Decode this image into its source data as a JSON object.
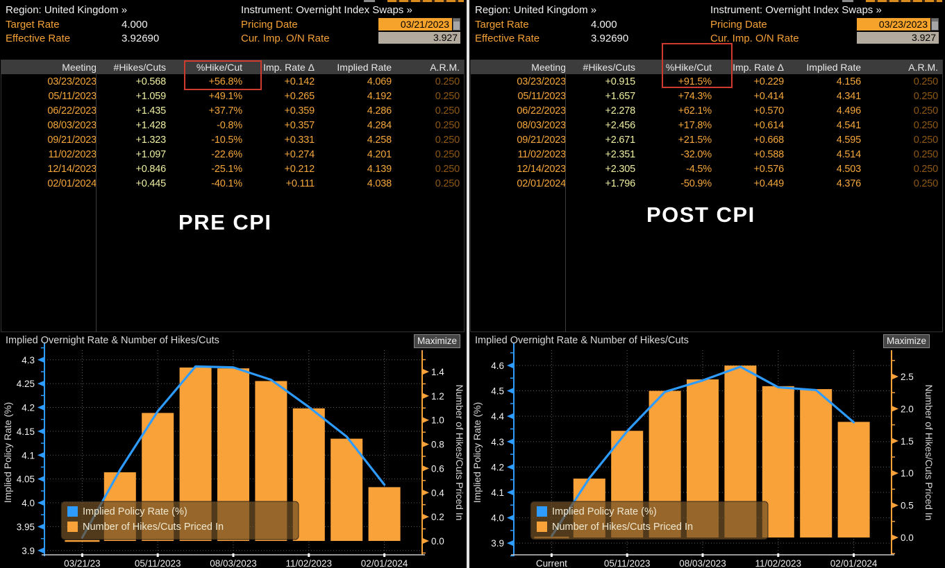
{
  "colors": {
    "amber_label": "#F4A136",
    "white_value": "#F2F2F2",
    "pale_yellow_value": "#EFEFA2",
    "dim_orange_arm": "#8E5814",
    "annotation_red": "#CE3B2E",
    "chart_blue": "#2E9BFF",
    "chart_orange": "#F9A23A",
    "date_field_bg": "#F6A32B",
    "readonly_field_bg": "#B3AB9D",
    "table_header_bg": "#3C3C3C"
  },
  "panels": [
    {
      "annotation": "PRE CPI",
      "header": {
        "region_label": "Region:",
        "region_value": "United Kingdom »",
        "instrument_label": "Instrument:",
        "instrument_value": "Overnight Index Swaps »",
        "target_rate_label": "Target Rate",
        "target_rate_value": "4.000",
        "effective_rate_label": "Effective Rate",
        "effective_rate_value": "3.92690",
        "pricing_date_label": "Pricing Date",
        "pricing_date_value": "03/21/2023",
        "cur_imp_label": "Cur. Imp. O/N Rate",
        "cur_imp_value": "3.927"
      },
      "table": {
        "columns": [
          "Meeting",
          "#Hikes/Cuts",
          "%Hike/Cut",
          "Imp. Rate Δ",
          "Implied Rate",
          "A.R.M."
        ],
        "rows": [
          [
            "03/23/2023",
            "+0.568",
            "+56.8%",
            "+0.142",
            "4.069",
            "0.250"
          ],
          [
            "05/11/2023",
            "+1.059",
            "+49.1%",
            "+0.265",
            "4.192",
            "0.250"
          ],
          [
            "06/22/2023",
            "+1.435",
            "+37.7%",
            "+0.359",
            "4.286",
            "0.250"
          ],
          [
            "08/03/2023",
            "+1.428",
            "-0.8%",
            "+0.357",
            "4.284",
            "0.250"
          ],
          [
            "09/21/2023",
            "+1.323",
            "-10.5%",
            "+0.331",
            "4.258",
            "0.250"
          ],
          [
            "11/02/2023",
            "+1.097",
            "-22.6%",
            "+0.274",
            "4.201",
            "0.250"
          ],
          [
            "12/14/2023",
            "+0.846",
            "-25.1%",
            "+0.212",
            "4.139",
            "0.250"
          ],
          [
            "02/01/2024",
            "+0.445",
            "-40.1%",
            "+0.111",
            "4.038",
            "0.250"
          ]
        ]
      },
      "chart": {
        "maximize_label": "Maximize"
      }
    },
    {
      "annotation": "POST CPI",
      "header": {
        "region_label": "Region:",
        "region_value": "United Kingdom »",
        "instrument_label": "Instrument:",
        "instrument_value": "Overnight Index Swaps »",
        "target_rate_label": "Target Rate",
        "target_rate_value": "4.000",
        "effective_rate_label": "Effective Rate",
        "effective_rate_value": "3.92690",
        "pricing_date_label": "Pricing Date",
        "pricing_date_value": "03/23/2023",
        "cur_imp_label": "Cur. Imp. O/N Rate",
        "cur_imp_value": "3.927"
      },
      "table": {
        "columns": [
          "Meeting",
          "#Hikes/Cuts",
          "%Hike/Cut",
          "Imp. Rate Δ",
          "Implied Rate",
          "A.R.M."
        ],
        "rows": [
          [
            "03/23/2023",
            "+0.915",
            "+91.5%",
            "+0.229",
            "4.156",
            "0.250"
          ],
          [
            "05/11/2023",
            "+1.657",
            "+74.3%",
            "+0.414",
            "4.341",
            "0.250"
          ],
          [
            "06/22/2023",
            "+2.278",
            "+62.1%",
            "+0.570",
            "4.496",
            "0.250"
          ],
          [
            "08/03/2023",
            "+2.456",
            "+17.8%",
            "+0.614",
            "4.541",
            "0.250"
          ],
          [
            "09/21/2023",
            "+2.671",
            "+21.5%",
            "+0.668",
            "4.595",
            "0.250"
          ],
          [
            "11/02/2023",
            "+2.351",
            "-32.0%",
            "+0.588",
            "4.514",
            "0.250"
          ],
          [
            "12/14/2023",
            "+2.305",
            "-4.5%",
            "+0.576",
            "4.503",
            "0.250"
          ],
          [
            "02/01/2024",
            "+1.796",
            "-50.9%",
            "+0.449",
            "4.376",
            "0.250"
          ]
        ]
      },
      "chart": {
        "maximize_label": "Maximize"
      }
    }
  ],
  "chart_data": [
    {
      "type": "bar+line",
      "title": "Implied Overnight Rate & Number of Hikes/Cuts",
      "x_points": [
        "03/21/23 (current)",
        "03/23/2023",
        "05/11/2023",
        "06/22/2023",
        "08/03/2023",
        "09/21/2023",
        "11/02/2023",
        "12/14/2023",
        "02/01/2024"
      ],
      "series": [
        {
          "name": "Implied Policy Rate (%)",
          "type": "line",
          "axis": "left",
          "color": "#2E9BFF",
          "values": [
            3.927,
            4.069,
            4.192,
            4.286,
            4.284,
            4.258,
            4.201,
            4.139,
            4.038
          ]
        },
        {
          "name": "Number of Hikes/Cuts Priced In",
          "type": "bar",
          "axis": "right",
          "color": "#F9A23A",
          "values": [
            0,
            0.568,
            1.059,
            1.435,
            1.428,
            1.323,
            1.097,
            0.846,
            0.445
          ]
        }
      ],
      "left_axis": {
        "title": "Implied Policy Rate (%)",
        "ticks": [
          "4.3",
          "4.25",
          "4.2",
          "4.15",
          "4.1",
          "4.05",
          "4.0",
          "3.95",
          "3.9"
        ],
        "min": 3.891,
        "max": 4.32
      },
      "right_axis": {
        "title": "Number of Hikes/Cuts Priced In",
        "ticks": [
          "1.4",
          "1.2",
          "1.0",
          "0.8",
          "0.6",
          "0.4",
          "0.2",
          "0.0"
        ],
        "min": -0.115,
        "max": 1.578
      },
      "x_ticks": [
        {
          "pos": 0,
          "label": "03/21/23"
        },
        {
          "pos": 2,
          "label": "05/11/2023"
        },
        {
          "pos": 4,
          "label": "08/03/2023"
        },
        {
          "pos": 6,
          "label": "11/02/2023"
        },
        {
          "pos": 8,
          "label": "02/01/2024"
        }
      ],
      "legend": [
        {
          "label": "Implied Policy Rate (%)",
          "color": "#2E9BFF"
        },
        {
          "label": "Number of Hikes/Cuts Priced In",
          "color": "#F9A23A"
        }
      ]
    },
    {
      "type": "bar+line",
      "title": "Implied Overnight Rate & Number of Hikes/Cuts",
      "x_points": [
        "Current",
        "03/23/2023",
        "05/11/2023",
        "06/22/2023",
        "08/03/2023",
        "09/21/2023",
        "11/02/2023",
        "12/14/2023",
        "02/01/2024"
      ],
      "series": [
        {
          "name": "Implied Policy Rate (%)",
          "type": "line",
          "axis": "left",
          "color": "#2E9BFF",
          "values": [
            3.927,
            4.156,
            4.341,
            4.496,
            4.541,
            4.595,
            4.514,
            4.503,
            4.376
          ]
        },
        {
          "name": "Number of Hikes/Cuts Priced In",
          "type": "bar",
          "axis": "right",
          "color": "#F9A23A",
          "values": [
            0,
            0.915,
            1.657,
            2.278,
            2.456,
            2.671,
            2.351,
            2.305,
            1.796
          ]
        }
      ],
      "left_axis": {
        "title": "Implied Policy Rate (%)",
        "ticks": [
          "4.6",
          "4.5",
          "4.4",
          "4.3",
          "4.2",
          "4.1",
          "4.0",
          "3.9"
        ],
        "min": 3.854,
        "max": 4.66
      },
      "right_axis": {
        "title": "Number of Hikes/Cuts Priced In",
        "ticks": [
          "2.5",
          "2.0",
          "1.5",
          "1.0",
          "0.5",
          "0.0"
        ],
        "min": -0.269,
        "max": 2.909
      },
      "x_ticks": [
        {
          "pos": 0,
          "label": "Current"
        },
        {
          "pos": 2,
          "label": "05/11/2023"
        },
        {
          "pos": 4,
          "label": "08/03/2023"
        },
        {
          "pos": 6,
          "label": "11/02/2023"
        },
        {
          "pos": 8,
          "label": "02/01/2024"
        }
      ],
      "legend": [
        {
          "label": "Implied Policy Rate (%)",
          "color": "#2E9BFF"
        },
        {
          "label": "Number of Hikes/Cuts Priced In",
          "color": "#F9A23A"
        }
      ]
    }
  ]
}
